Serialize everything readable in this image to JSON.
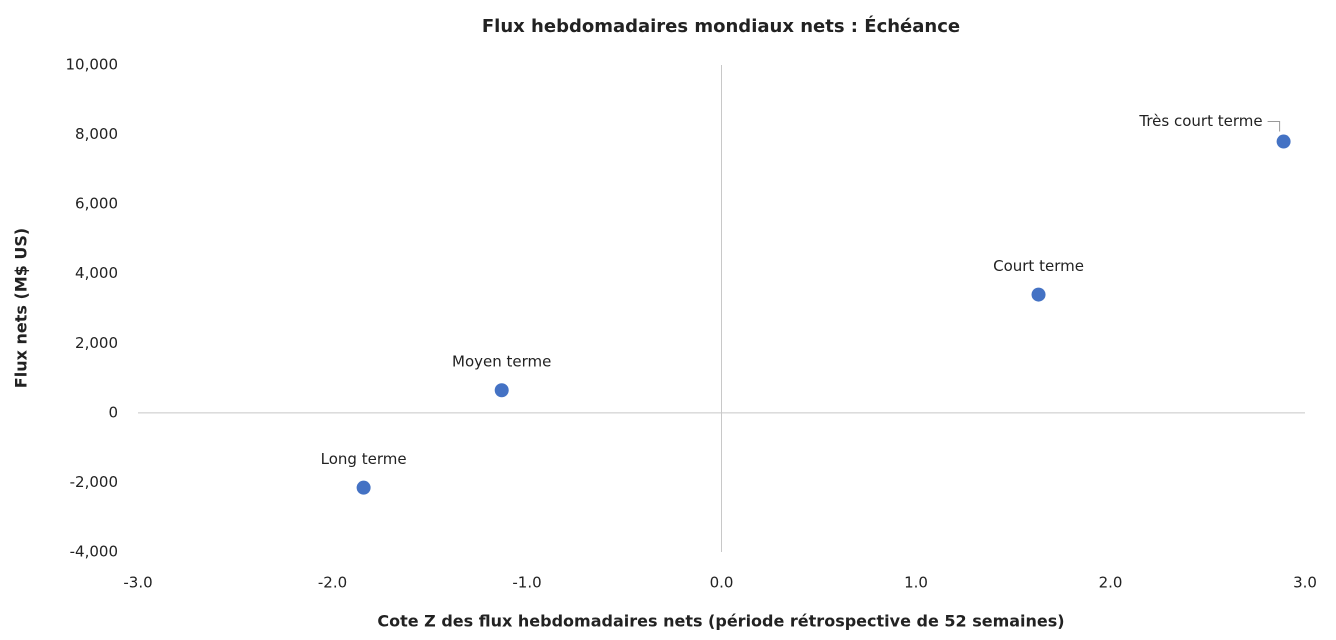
{
  "chart_data": {
    "type": "scatter",
    "title": "Flux hebdomadaires mondiaux nets : Échéance",
    "x_label": "Cote Z des flux hebdomadaires nets (période rétrospective de 52 semaines)",
    "y_label": "Flux nets (M$ US)",
    "series": [
      {
        "name": null,
        "color": "#4472c4",
        "x": [
          2.89,
          1.63,
          -1.13,
          -1.84
        ],
        "values": [
          7800,
          3400,
          650,
          -2150
        ],
        "point_labels": [
          "Très court terme",
          "Court terme",
          "Moyen terme",
          "Long terme"
        ]
      }
    ],
    "xlim": [
      -3,
      3
    ],
    "xticks": [
      {
        "value": -3,
        "label": "-3.0"
      },
      {
        "value": -2,
        "label": "-2.0"
      },
      {
        "value": -1,
        "label": "-1.0"
      },
      {
        "value": 0,
        "label": "0.0"
      },
      {
        "value": 1,
        "label": "1.0"
      },
      {
        "value": 2,
        "label": "2.0"
      },
      {
        "value": 3,
        "label": "3.0"
      }
    ],
    "ylim": [
      -4000,
      10000
    ],
    "yticks": [
      {
        "value": -4000,
        "label": "-4,000"
      },
      {
        "value": -2000,
        "label": "-2,000"
      },
      0,
      {
        "value": 2000,
        "label": "2,000"
      },
      {
        "value": 4000,
        "label": "4,000"
      },
      {
        "value": 6000,
        "label": "6,000"
      },
      {
        "value": 8000,
        "label": "8,000"
      },
      {
        "value": 10000,
        "label": "10,000"
      }
    ],
    "grid": false
  }
}
